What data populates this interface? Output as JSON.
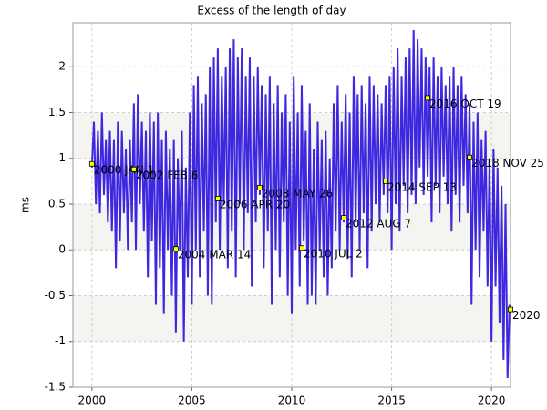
{
  "chart_data": {
    "type": "line",
    "title": "Excess of the length of day",
    "y_label": "ms",
    "xlim": [
      1999.05,
      2020.95
    ],
    "ylim": [
      -1.5,
      2.48
    ],
    "xticks": [
      2000,
      2005,
      2010,
      2015,
      2020
    ],
    "yticks": [
      -1.5,
      -1,
      -0.5,
      0,
      0.5,
      1,
      1.5,
      2
    ],
    "grid": true,
    "band_color": "#f4f4f0",
    "x": [
      2000,
      2000.1,
      2000.2,
      2000.3,
      2000.4,
      2000.5,
      2000.6,
      2000.7,
      2000.8,
      2000.9,
      2001,
      2001.1,
      2001.2,
      2001.3,
      2001.4,
      2001.5,
      2001.6,
      2001.7,
      2001.8,
      2001.9,
      2002,
      2002.1,
      2002.2,
      2002.3,
      2002.4,
      2002.5,
      2002.6,
      2002.7,
      2002.8,
      2002.9,
      2003,
      2003.1,
      2003.2,
      2003.3,
      2003.4,
      2003.5,
      2003.6,
      2003.7,
      2003.8,
      2003.9,
      2004,
      2004.1,
      2004.2,
      2004.3,
      2004.4,
      2004.5,
      2004.6,
      2004.7,
      2004.8,
      2004.9,
      2005,
      2005.1,
      2005.2,
      2005.3,
      2005.4,
      2005.5,
      2005.6,
      2005.7,
      2005.8,
      2005.9,
      2006,
      2006.1,
      2006.2,
      2006.3,
      2006.4,
      2006.5,
      2006.6,
      2006.7,
      2006.8,
      2006.9,
      2007,
      2007.1,
      2007.2,
      2007.3,
      2007.4,
      2007.5,
      2007.6,
      2007.7,
      2007.8,
      2007.9,
      2008,
      2008.1,
      2008.2,
      2008.3,
      2008.4,
      2008.5,
      2008.6,
      2008.7,
      2008.8,
      2008.9,
      2009,
      2009.1,
      2009.2,
      2009.3,
      2009.4,
      2009.5,
      2009.6,
      2009.7,
      2009.8,
      2009.9,
      2010,
      2010.1,
      2010.2,
      2010.3,
      2010.4,
      2010.5,
      2010.6,
      2010.7,
      2010.8,
      2010.9,
      2011,
      2011.1,
      2011.2,
      2011.3,
      2011.4,
      2011.5,
      2011.6,
      2011.7,
      2011.8,
      2011.9,
      2012,
      2012.1,
      2012.2,
      2012.3,
      2012.4,
      2012.5,
      2012.6,
      2012.7,
      2012.8,
      2012.9,
      2013,
      2013.1,
      2013.2,
      2013.3,
      2013.4,
      2013.5,
      2013.6,
      2013.7,
      2013.8,
      2013.9,
      2014,
      2014.1,
      2014.2,
      2014.3,
      2014.4,
      2014.5,
      2014.6,
      2014.7,
      2014.8,
      2014.9,
      2015,
      2015.1,
      2015.2,
      2015.3,
      2015.4,
      2015.5,
      2015.6,
      2015.7,
      2015.8,
      2015.9,
      2016,
      2016.1,
      2016.2,
      2016.3,
      2016.4,
      2016.5,
      2016.6,
      2016.7,
      2016.8,
      2016.9,
      2017,
      2017.1,
      2017.2,
      2017.3,
      2017.4,
      2017.5,
      2017.6,
      2017.7,
      2017.8,
      2017.9,
      2018,
      2018.1,
      2018.2,
      2018.3,
      2018.4,
      2018.5,
      2018.6,
      2018.7,
      2018.8,
      2018.9,
      2019,
      2019.1,
      2019.2,
      2019.3,
      2019.4,
      2019.5,
      2019.6,
      2019.7,
      2019.8,
      2019.9,
      2020,
      2020.1,
      2020.2,
      2020.3,
      2020.4,
      2020.5,
      2020.6,
      2020.7,
      2020.8,
      2020.9
    ],
    "series": [
      {
        "color": "#3d28e0",
        "values": [
          0.9,
          1.4,
          0.5,
          1.3,
          0.4,
          1.5,
          0.6,
          1.2,
          0.3,
          1.3,
          0.2,
          1.2,
          -0.2,
          1.4,
          0.1,
          1.3,
          0.4,
          1.1,
          0.0,
          1.2,
          0.3,
          1.6,
          0.0,
          1.7,
          0.5,
          1.4,
          0.2,
          1.3,
          -0.3,
          1.5,
          0.1,
          1.4,
          -0.6,
          1.5,
          -0.2,
          1.2,
          -0.7,
          1.3,
          0.0,
          1.1,
          -0.5,
          1.2,
          -0.9,
          1.0,
          0.0,
          1.3,
          -1.0,
          0.9,
          -0.3,
          1.5,
          -0.6,
          1.8,
          0.0,
          1.9,
          -0.3,
          1.6,
          0.2,
          1.7,
          -0.5,
          2.0,
          -0.6,
          2.1,
          0.3,
          2.2,
          0.0,
          1.9,
          0.5,
          2.0,
          -0.2,
          2.2,
          0.2,
          2.3,
          -0.3,
          2.1,
          0.5,
          2.2,
          0.0,
          1.9,
          0.4,
          2.1,
          -0.4,
          1.9,
          0.3,
          2.0,
          0.6,
          1.8,
          -0.2,
          1.7,
          0.2,
          1.9,
          -0.6,
          1.6,
          0.0,
          1.8,
          -0.3,
          1.5,
          0.3,
          1.7,
          -0.5,
          1.4,
          -0.7,
          1.9,
          0.0,
          1.5,
          -0.4,
          1.8,
          0.1,
          1.3,
          -0.6,
          1.6,
          -0.5,
          1.1,
          -0.6,
          1.4,
          0.0,
          1.2,
          -0.3,
          1.3,
          -0.5,
          1.0,
          -0.2,
          1.6,
          0.2,
          1.8,
          0.0,
          1.4,
          0.3,
          1.7,
          -0.1,
          1.5,
          -0.3,
          1.9,
          0.3,
          1.7,
          0.0,
          1.8,
          0.4,
          1.6,
          -0.2,
          1.9,
          0.2,
          1.8,
          0.5,
          1.7,
          0.3,
          1.6,
          0.6,
          1.8,
          0.4,
          1.9,
          0.0,
          2.0,
          0.5,
          2.2,
          0.2,
          1.9,
          0.7,
          2.1,
          0.4,
          2.2,
          0.6,
          2.4,
          0.5,
          2.3,
          0.9,
          2.2,
          0.6,
          2.1,
          0.8,
          2.0,
          0.3,
          2.1,
          0.7,
          1.9,
          0.4,
          2.0,
          0.8,
          1.8,
          0.5,
          1.9,
          0.2,
          2.0,
          0.6,
          1.8,
          0.3,
          1.9,
          0.7,
          1.7,
          0.4,
          1.6,
          -0.6,
          1.4,
          0.0,
          1.5,
          -0.3,
          1.2,
          0.2,
          1.3,
          -0.4,
          1.0,
          -1.0,
          1.1,
          -0.4,
          0.9,
          -0.8,
          0.7,
          -1.2,
          0.5,
          -1.4,
          -0.6
        ]
      }
    ],
    "annotations": [
      {
        "x": 2000.0,
        "y": 0.94,
        "label": "2000 JAN 1"
      },
      {
        "x": 2002.1,
        "y": 0.88,
        "label": "2002 FEB 6"
      },
      {
        "x": 2004.2,
        "y": 0.01,
        "label": "2004 MAR 14"
      },
      {
        "x": 2006.3,
        "y": 0.56,
        "label": "2006 APR 20"
      },
      {
        "x": 2008.4,
        "y": 0.68,
        "label": "2008 MAY 26"
      },
      {
        "x": 2010.5,
        "y": 0.02,
        "label": "2010 JUL 2"
      },
      {
        "x": 2012.6,
        "y": 0.35,
        "label": "2012 AUG 7"
      },
      {
        "x": 2014.7,
        "y": 0.75,
        "label": "2014 SEP 13"
      },
      {
        "x": 2016.8,
        "y": 1.66,
        "label": "2016 OCT 19"
      },
      {
        "x": 2018.9,
        "y": 1.01,
        "label": "2018 NOV 25"
      },
      {
        "x": 2020.95,
        "y": -0.65,
        "label": "2020"
      }
    ]
  }
}
